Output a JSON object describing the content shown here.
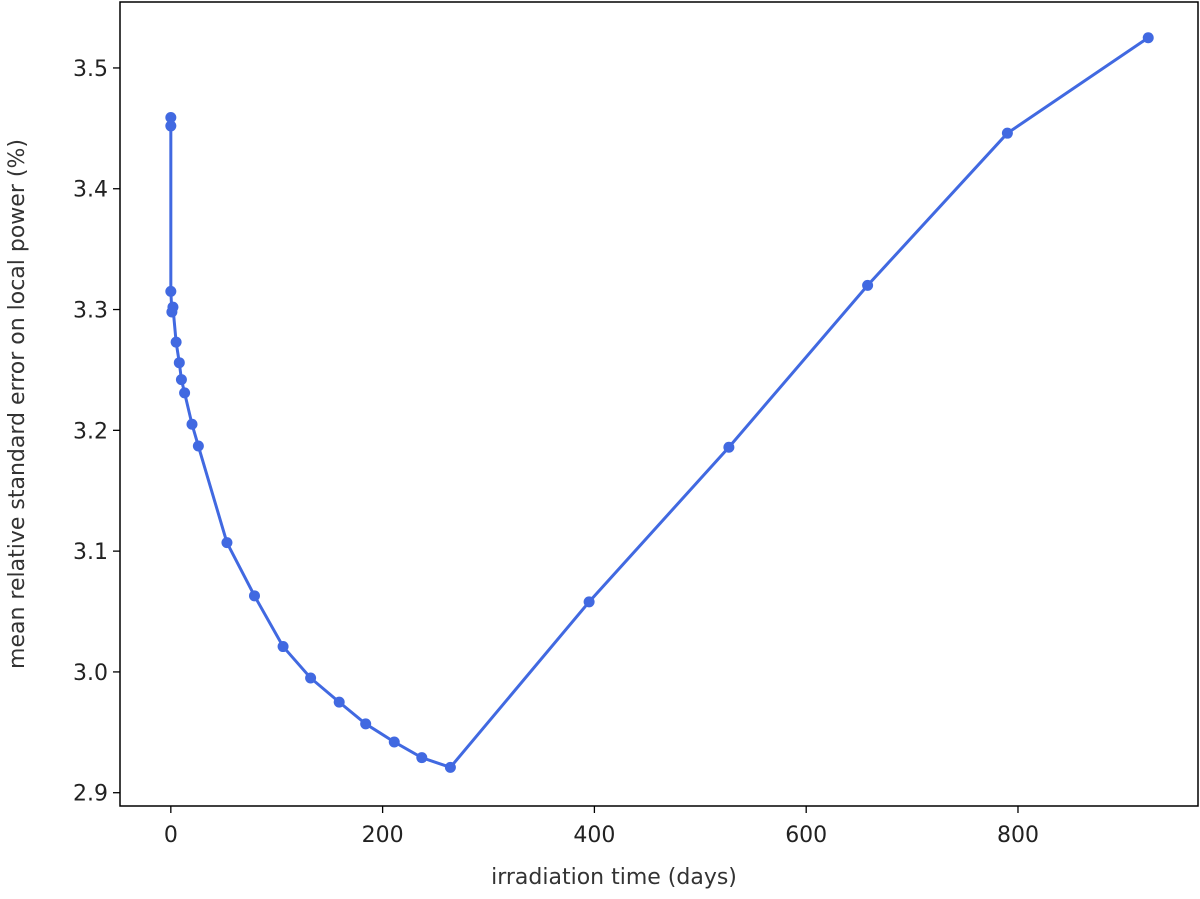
{
  "chart_data": {
    "type": "line",
    "xlabel": "irradiation time (days)",
    "ylabel": "mean relative standard error on local power (%)",
    "color": "#4169e1",
    "x": [
      0,
      0,
      0,
      1,
      2,
      5,
      8,
      10,
      13,
      20,
      26,
      53,
      79,
      106,
      132,
      159,
      184,
      211,
      237,
      264,
      395,
      527,
      658,
      790,
      923
    ],
    "values": [
      3.459,
      3.452,
      3.315,
      3.298,
      3.302,
      3.273,
      3.256,
      3.242,
      3.231,
      3.205,
      3.187,
      3.107,
      3.063,
      3.021,
      2.995,
      2.975,
      2.957,
      2.942,
      2.929,
      2.921,
      3.058,
      3.186,
      3.32,
      3.446,
      3.525
    ],
    "xlim": [
      -48,
      970
    ],
    "ylim": [
      2.889,
      3.5546
    ],
    "xticks": [
      0,
      200,
      400,
      600,
      800
    ],
    "yticks": [
      2.9,
      {
        "value": 3,
        "label": "3.0"
      },
      3.1,
      3.2,
      3.3,
      3.4,
      3.5
    ],
    "grid": false
  }
}
